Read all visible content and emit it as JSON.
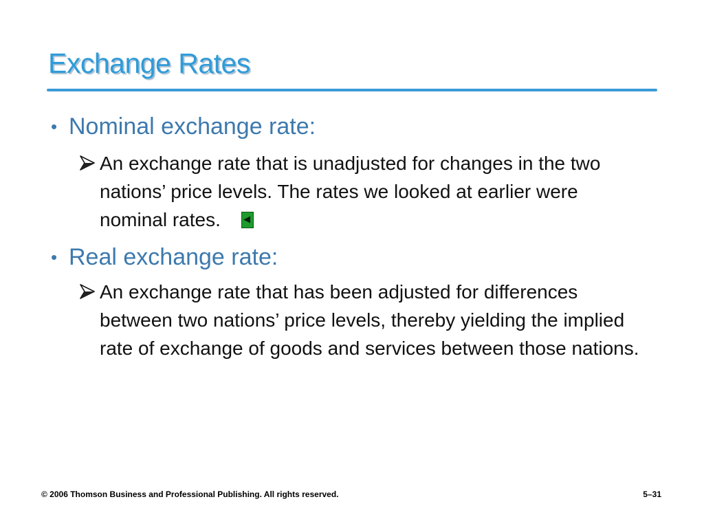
{
  "slide": {
    "title": "Exchange Rates",
    "bullets": [
      {
        "heading": "Nominal exchange rate:",
        "detail": "An exchange rate that is unadjusted for changes in the two nations’ price levels. The rates we looked at earlier were nominal rates."
      },
      {
        "heading": "Real exchange rate:",
        "detail": "An exchange rate that has been adjusted for differences between two nations’ price levels, thereby yielding the implied rate of exchange of goods and services between those nations."
      }
    ]
  },
  "footer": {
    "copyright": "© 2006 Thomson Business and Professional Publishing. All rights reserved.",
    "slide_number": "5–31"
  },
  "colors": {
    "title": "#2f9bd9",
    "heading": "#3d79ad",
    "rule": "#3a9ad8",
    "back_button": "#1f9a2d"
  },
  "icons": {
    "sub_bullet": "arrow-bullet-icon",
    "back_button": "back-arrow-icon"
  }
}
